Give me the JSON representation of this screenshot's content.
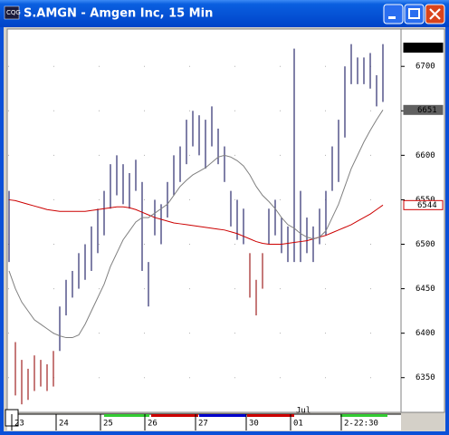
{
  "chart_data": {
    "type": "hilo",
    "title": "S.AMGN - Amgen Inc, 15 Min",
    "categories": [
      null,
      "23",
      null,
      null,
      null,
      null,
      null,
      null,
      "24",
      null,
      null,
      null,
      null,
      null,
      null,
      "25",
      null,
      null,
      null,
      null,
      null,
      null,
      "26",
      null,
      null,
      null,
      null,
      null,
      null,
      null,
      "27",
      null,
      null,
      null,
      null,
      null,
      null,
      null,
      "30",
      null,
      null,
      null,
      null,
      null,
      null,
      "01",
      null,
      null,
      null,
      null,
      null,
      null,
      null,
      "2-22:30",
      null,
      null,
      null,
      null,
      null,
      null
    ],
    "month_label": "Jul",
    "high": [
      6560,
      6390,
      6370,
      6360,
      6375,
      6370,
      6365,
      6380,
      6430,
      6460,
      6470,
      6490,
      6500,
      6520,
      6540,
      6560,
      6590,
      6600,
      6590,
      6580,
      6595,
      6570,
      6480,
      6550,
      6545,
      6570,
      6600,
      6610,
      6640,
      6650,
      6645,
      6640,
      6655,
      6630,
      6610,
      6560,
      6550,
      6540,
      6490,
      6460,
      6490,
      6540,
      6550,
      6530,
      6520,
      6720,
      6560,
      6530,
      6520,
      6540,
      6560,
      6610,
      6640,
      6700,
      6725,
      6710,
      6710,
      6715,
      6690,
      6725
    ],
    "low": [
      6480,
      6330,
      6320,
      6325,
      6335,
      6340,
      6335,
      6340,
      6380,
      6420,
      6440,
      6450,
      6460,
      6470,
      6490,
      6510,
      6540,
      6555,
      6545,
      6540,
      6560,
      6470,
      6430,
      6510,
      6500,
      6530,
      6555,
      6570,
      6590,
      6610,
      6600,
      6585,
      6610,
      6590,
      6570,
      6520,
      6505,
      6500,
      6440,
      6420,
      6450,
      6500,
      6510,
      6490,
      6480,
      6480,
      6480,
      6490,
      6480,
      6500,
      6510,
      6560,
      6570,
      6620,
      6680,
      6680,
      6680,
      6675,
      6655,
      6660
    ],
    "bar_colors": [
      "#3c3c78",
      "#a83232",
      "#a83232",
      "#a83232",
      "#a83232",
      "#a83232",
      "#a83232",
      "#a83232",
      "#3c3c78",
      "#3c3c78",
      "#3c3c78",
      "#3c3c78",
      "#3c3c78",
      "#3c3c78",
      "#3c3c78",
      "#3c3c78",
      "#3c3c78",
      "#3c3c78",
      "#3c3c78",
      "#3c3c78",
      "#3c3c78",
      "#3c3c78",
      "#3c3c78",
      "#3c3c78",
      "#3c3c78",
      "#3c3c78",
      "#3c3c78",
      "#3c3c78",
      "#3c3c78",
      "#3c3c78",
      "#3c3c78",
      "#3c3c78",
      "#3c3c78",
      "#3c3c78",
      "#3c3c78",
      "#3c3c78",
      "#3c3c78",
      "#3c3c78",
      "#a83232",
      "#a83232",
      "#a83232",
      "#3c3c78",
      "#3c3c78",
      "#3c3c78",
      "#3c3c78",
      "#3c3c78",
      "#3c3c78",
      "#3c3c78",
      "#3c3c78",
      "#3c3c78",
      "#3c3c78",
      "#3c3c78",
      "#3c3c78",
      "#3c3c78",
      "#3c3c78",
      "#3c3c78",
      "#3c3c78",
      "#3c3c78",
      "#3c3c78",
      "#3c3c78"
    ],
    "ma_short": {
      "color": "#808080",
      "values": [
        6470,
        6450,
        6435,
        6425,
        6415,
        6410,
        6405,
        6400,
        6397,
        6395,
        6395,
        6398,
        6410,
        6425,
        6440,
        6455,
        6475,
        6490,
        6505,
        6515,
        6525,
        6530,
        6530,
        6535,
        6540,
        6545,
        6555,
        6565,
        6572,
        6578,
        6582,
        6586,
        6592,
        6598,
        6600,
        6598,
        6594,
        6588,
        6578,
        6565,
        6555,
        6548,
        6540,
        6530,
        6522,
        6518,
        6512,
        6508,
        6506,
        6508,
        6515,
        6530,
        6545,
        6565,
        6585,
        6600,
        6615,
        6628,
        6640,
        6651
      ]
    },
    "ma_long": {
      "color": "#cc0000",
      "values": [
        6550,
        6549,
        6547,
        6545,
        6543,
        6541,
        6539,
        6538,
        6537,
        6537,
        6537,
        6537,
        6537,
        6538,
        6539,
        6540,
        6541,
        6542,
        6542,
        6541,
        6539,
        6536,
        6533,
        6530,
        6528,
        6526,
        6524,
        6523,
        6522,
        6521,
        6520,
        6519,
        6518,
        6517,
        6516,
        6514,
        6512,
        6509,
        6506,
        6503,
        6501,
        6500,
        6500,
        6500,
        6501,
        6502,
        6503,
        6504,
        6506,
        6508,
        6510,
        6513,
        6516,
        6519,
        6522,
        6526,
        6530,
        6534,
        6539,
        6544
      ]
    },
    "last_values": [
      {
        "value": 6721,
        "color": "#000000"
      },
      {
        "value": 6651,
        "color": "#606060"
      },
      {
        "value": 6544,
        "color": "#cc0000"
      }
    ],
    "ylim": [
      6311,
      6742
    ],
    "yticks": [
      6350,
      6400,
      6450,
      6500,
      6550,
      6600,
      6650,
      6700
    ],
    "grid": true
  }
}
